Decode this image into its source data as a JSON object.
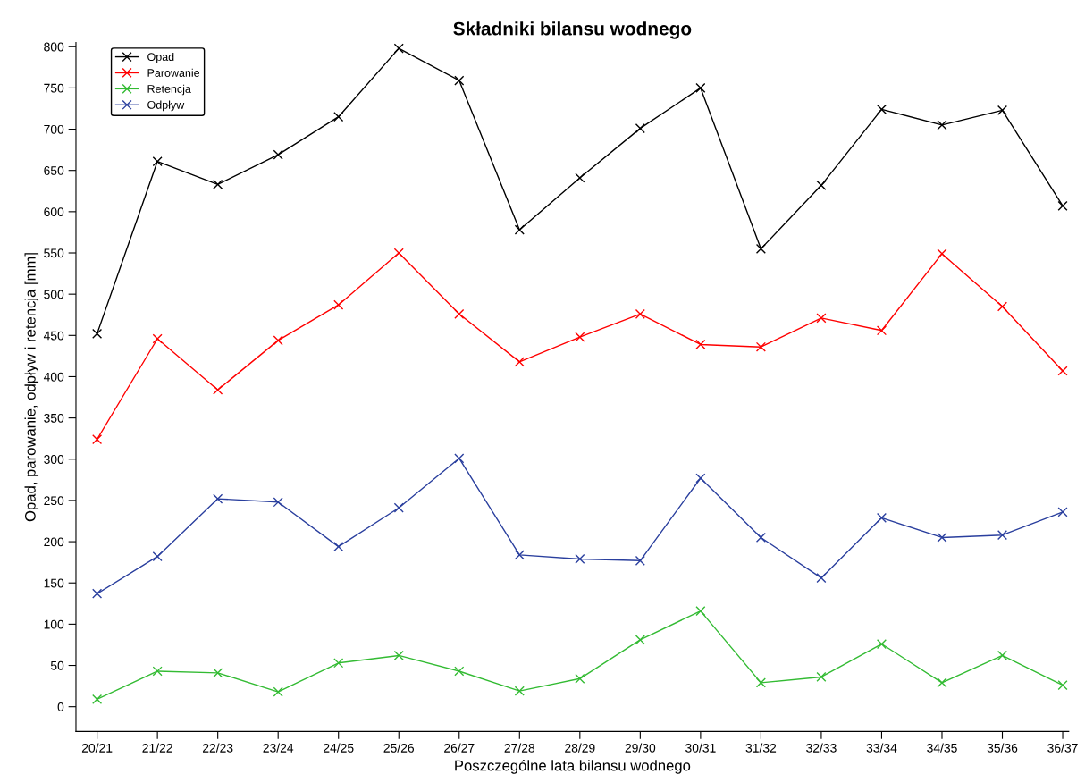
{
  "chart_data": {
    "type": "line",
    "title": "Składniki bilansu wodnego",
    "xlabel": "Poszczególne lata bilansu wodnego",
    "ylabel": "Opad, parowanie, odpływ i retencja [mm]",
    "categories": [
      "20/21",
      "21/22",
      "22/23",
      "23/24",
      "24/25",
      "25/26",
      "26/27",
      "27/28",
      "28/29",
      "29/30",
      "30/31",
      "31/32",
      "32/33",
      "33/34",
      "34/35",
      "35/36",
      "36/37"
    ],
    "series": [
      {
        "name": "Opad",
        "color": "#000000",
        "values": [
          452,
          661,
          633,
          669,
          715,
          798,
          759,
          578,
          641,
          701,
          750,
          555,
          632,
          724,
          705,
          723,
          607
        ]
      },
      {
        "name": "Parowanie",
        "color": "#ff0000",
        "values": [
          324,
          446,
          384,
          444,
          487,
          550,
          476,
          418,
          448,
          476,
          439,
          436,
          471,
          456,
          549,
          485,
          407
        ]
      },
      {
        "name": "Retencja",
        "color": "#33bb33",
        "values": [
          9,
          43,
          41,
          18,
          53,
          62,
          43,
          19,
          34,
          81,
          116,
          29,
          36,
          76,
          29,
          62,
          26
        ]
      },
      {
        "name": "Odpływ",
        "color": "#2a3f9e",
        "values": [
          137,
          182,
          252,
          248,
          194,
          241,
          301,
          184,
          179,
          177,
          277,
          205,
          156,
          229,
          205,
          208,
          236
        ]
      }
    ],
    "ylim": [
      -30,
      805
    ],
    "yticks": [
      0,
      50,
      100,
      150,
      200,
      250,
      300,
      350,
      400,
      450,
      500,
      550,
      600,
      650,
      700,
      750,
      800
    ],
    "grid": false,
    "legend": "top left",
    "marker": "cross",
    "line_style": "solid"
  }
}
